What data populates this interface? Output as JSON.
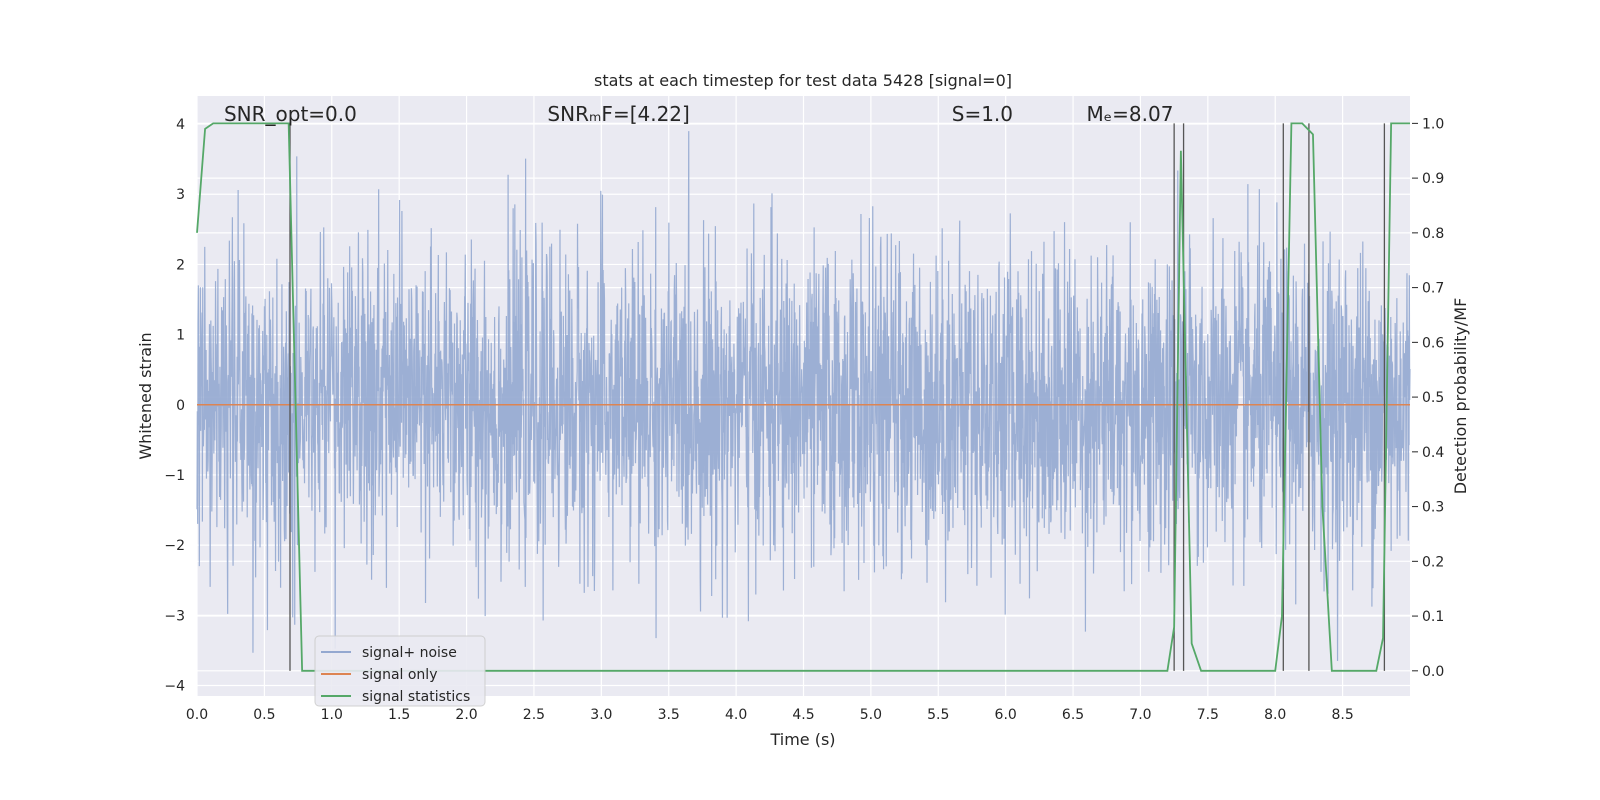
{
  "chart_data": {
    "type": "line",
    "title": "stats at each timestep for test data 5428 [signal=0]",
    "xlabel": "Time (s)",
    "ylabel": "Whitened strain",
    "y2label": "Detection probability/MF",
    "xlim": [
      0.0,
      9.0
    ],
    "ylim": [
      -4.15,
      4.4
    ],
    "y2lim": [
      -0.046,
      1.05
    ],
    "x_ticks": [
      0.0,
      0.5,
      1.0,
      1.5,
      2.0,
      2.5,
      3.0,
      3.5,
      4.0,
      4.5,
      5.0,
      5.5,
      6.0,
      6.5,
      7.0,
      7.5,
      8.0,
      8.5
    ],
    "y_ticks": [
      4,
      3,
      2,
      1,
      0,
      -1,
      -2,
      -3,
      -4
    ],
    "y2_ticks": [
      1.0,
      0.9,
      0.8,
      0.7,
      0.6,
      0.5,
      0.4,
      0.3,
      0.2,
      0.1,
      0.0
    ],
    "grid": true,
    "legend_position": "lower-left",
    "annotations": [
      {
        "x": 0.2,
        "text": "SNR_opt=0.0"
      },
      {
        "x": 2.6,
        "text": "SNRₘF=[4.22]"
      },
      {
        "x": 5.6,
        "text": "S=1.0"
      },
      {
        "x": 6.6,
        "text": "Mₑ=8.07"
      }
    ],
    "series": [
      {
        "name": "signal+ noise",
        "color": "#94a8d0",
        "description_free": true,
        "noise_amplitude_std": 1.1,
        "x_range": [
          0.0,
          9.0
        ]
      },
      {
        "name": "signal only",
        "color": "#dd8452",
        "x": [
          0.0,
          9.0
        ],
        "y": [
          0.0,
          0.0
        ]
      },
      {
        "name": "signal statistics",
        "color": "#55a868",
        "axis": "right",
        "x": [
          0.0,
          0.06,
          0.12,
          0.2,
          0.6,
          0.68,
          0.78,
          0.85,
          1.0,
          7.2,
          7.25,
          7.3,
          7.38,
          7.45,
          7.6,
          8.0,
          8.05,
          8.12,
          8.2,
          8.28,
          8.35,
          8.42,
          8.5,
          8.75,
          8.8,
          8.86,
          8.9,
          9.0
        ],
        "y": [
          0.8,
          0.99,
          1.0,
          1.0,
          1.0,
          1.0,
          0.0,
          0.0,
          0.0,
          0.0,
          0.08,
          0.95,
          0.05,
          0.0,
          0.0,
          0.0,
          0.1,
          1.0,
          1.0,
          0.98,
          0.3,
          0.0,
          0.0,
          0.0,
          0.06,
          1.0,
          1.0,
          1.0
        ]
      }
    ],
    "vertical_markers_x": [
      0.69,
      7.25,
      7.32,
      8.06,
      8.25,
      8.81
    ]
  }
}
